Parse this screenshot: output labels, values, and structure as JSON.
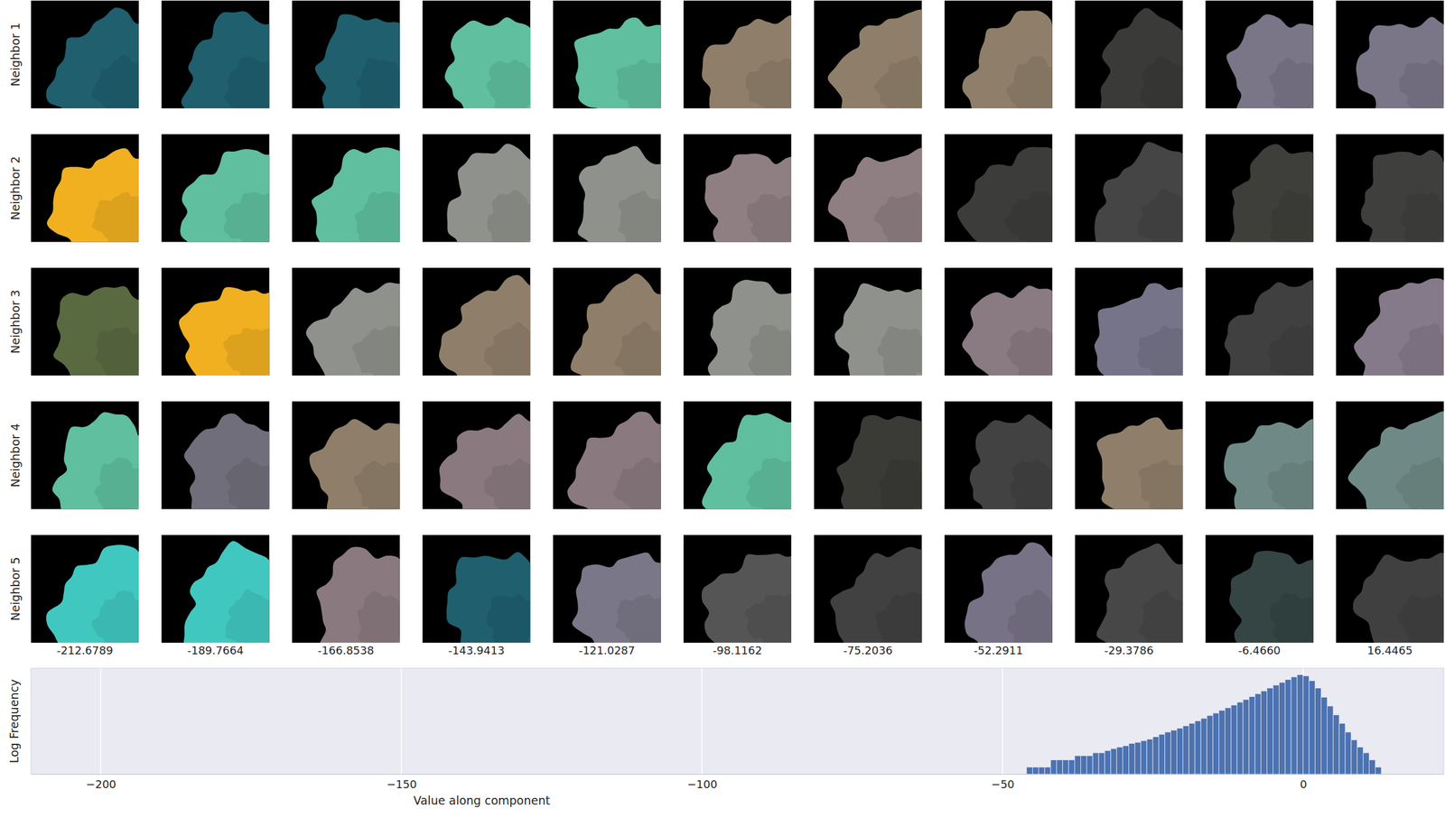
{
  "chart_data": [
    {
      "type": "image_grid",
      "columns": [
        -212.6789,
        -189.7664,
        -166.8538,
        -143.9413,
        -121.0287,
        -98.1162,
        -75.2036,
        -52.2911,
        -29.3786,
        {
          "value": -6.466,
          "label": "-6.4660"
        },
        16.4465
      ],
      "rows": [
        {
          "label": "Neighbor 1",
          "colors": [
            "#1f5f6e",
            "#1f5f6e",
            "#1f5f6e",
            "#5fbf9f",
            "#5fbf9f",
            "#8f7f6a",
            "#8f7f6a",
            "#8f7f6a",
            "#3a3b38",
            "#7a7688",
            "#7a7688"
          ]
        },
        {
          "label": "Neighbor 2",
          "colors": [
            "#f0b020",
            "#5fbf9f",
            "#5fbf9f",
            "#8f918c",
            "#8f918c",
            "#8f7f82",
            "#8f7f82",
            "#3c3d3a",
            "#454545",
            "#3e3e3a",
            "#3f3f3d"
          ]
        },
        {
          "label": "Neighbor 3",
          "colors": [
            "#5a6a40",
            "#f0b020",
            "#8f918c",
            "#8f7f6a",
            "#8f7f6a",
            "#8f918c",
            "#8f918c",
            "#8a7a82",
            "#767488",
            "#404040",
            "#857a8a"
          ]
        },
        {
          "label": "Neighbor 4",
          "colors": [
            "#5fbf9f",
            "#6f6e7a",
            "#8f7f6a",
            "#8a7a80",
            "#8a7a80",
            "#5fbf9f",
            "#3a3a36",
            "#424242",
            "#8f7f6a",
            "#6f8a86",
            "#6f8a86"
          ]
        },
        {
          "label": "Neighbor 5",
          "colors": [
            "#40c8c0",
            "#40c8c0",
            "#8a7a80",
            "#1f5f6e",
            "#7a7888",
            "#555555",
            "#414141",
            "#777285",
            "#474747",
            "#344544",
            "#404040"
          ]
        }
      ]
    },
    {
      "type": "histogram",
      "xlabel": "Value along component",
      "ylabel": "Log Frequency",
      "bins": [
        -46,
        -45,
        -44,
        -43,
        -42,
        -41,
        -40,
        -39,
        -38,
        -37,
        -36,
        -35,
        -34,
        -33,
        -32,
        -31,
        -30,
        -29,
        -28,
        -27,
        -26,
        -25,
        -24,
        -23,
        -22,
        -21,
        -20,
        -19,
        -18,
        -17,
        -16,
        -15,
        -14,
        -13,
        -12,
        -11,
        -10,
        -9,
        -8,
        -7,
        -6,
        -5,
        -4,
        -3,
        -2,
        -1,
        0,
        1,
        2,
        3,
        4,
        5,
        6,
        7,
        8,
        9,
        10,
        11,
        12,
        13
      ],
      "values": [
        1,
        1,
        1,
        1,
        2,
        2,
        2,
        2,
        3,
        3,
        3,
        4,
        4,
        5,
        6,
        7,
        8,
        10,
        11,
        13,
        15,
        19,
        24,
        30,
        36,
        44,
        55,
        70,
        90,
        115,
        150,
        190,
        250,
        320,
        420,
        550,
        720,
        950,
        1250,
        1650,
        2200,
        2900,
        3800,
        5000,
        6500,
        8000,
        7200,
        4500,
        2200,
        900,
        380,
        160,
        70,
        30,
        14,
        7,
        4,
        2,
        1
      ],
      "color": "#4c72b0",
      "xlim": [
        -211.6,
        23.4
      ],
      "xticks": [
        {
          "value": -200,
          "label": "−200"
        },
        {
          "value": -150,
          "label": "−150"
        },
        {
          "value": -100,
          "label": "−100"
        },
        {
          "value": -50,
          "label": "−50"
        },
        0
      ],
      "ylim": [
        0.5,
        15000
      ],
      "log": "y",
      "grid": true,
      "tick_labels": "x"
    }
  ]
}
